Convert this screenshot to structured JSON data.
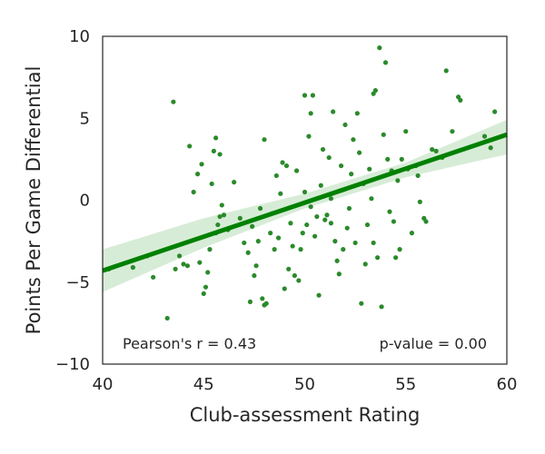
{
  "chart_data": {
    "type": "scatter",
    "title": "",
    "xlabel": "Club-assessment Rating",
    "ylabel": "Points Per Game Differential",
    "xlim": [
      40,
      60
    ],
    "ylim": [
      -10,
      10
    ],
    "xticks": [
      40,
      45,
      50,
      55,
      60
    ],
    "xtick_labels": [
      "40",
      "45",
      "50",
      "55",
      "60"
    ],
    "yticks": [
      -10,
      -5,
      0,
      5,
      10
    ],
    "ytick_labels": [
      "−10",
      "−5",
      "0",
      "5",
      "10"
    ],
    "grid": false,
    "point_color": "#2a8a2a",
    "line_color": "#008000",
    "band_color": "#c9e6c9",
    "regression": {
      "slope": 0.415,
      "intercept": -20.9,
      "x_range": [
        40,
        60
      ]
    },
    "confidence_band": {
      "x": [
        40,
        45,
        50,
        55,
        60
      ],
      "lower": [
        -5.6,
        -2.9,
        -0.5,
        1.4,
        2.8
      ],
      "upper": [
        -3.0,
        -1.1,
        0.4,
        2.3,
        4.9
      ]
    },
    "annotations": {
      "pearson": "Pearson's r = 0.43",
      "pvalue": "p-value = 0.00"
    },
    "points": [
      [
        40.3,
        -4.2
      ],
      [
        41.5,
        -4.1
      ],
      [
        42.2,
        -3.4
      ],
      [
        42.5,
        -4.7
      ],
      [
        43.2,
        -7.2
      ],
      [
        43.5,
        6.0
      ],
      [
        43.6,
        -4.2
      ],
      [
        43.8,
        -3.4
      ],
      [
        44.0,
        -3.9
      ],
      [
        44.2,
        -4.0
      ],
      [
        44.3,
        3.3
      ],
      [
        44.5,
        0.5
      ],
      [
        44.7,
        1.6
      ],
      [
        44.8,
        -3.8
      ],
      [
        44.9,
        2.2
      ],
      [
        45.0,
        -5.7
      ],
      [
        45.1,
        -5.3
      ],
      [
        45.2,
        -4.4
      ],
      [
        45.3,
        -3.0
      ],
      [
        45.4,
        1.0
      ],
      [
        45.5,
        3.0
      ],
      [
        45.6,
        3.8
      ],
      [
        45.6,
        -2.0
      ],
      [
        45.7,
        -1.5
      ],
      [
        45.8,
        -1.0
      ],
      [
        45.8,
        2.8
      ],
      [
        45.9,
        -0.3
      ],
      [
        46.0,
        -0.9
      ],
      [
        46.2,
        -1.8
      ],
      [
        46.5,
        1.1
      ],
      [
        46.8,
        -1.1
      ],
      [
        47.0,
        -2.6
      ],
      [
        47.2,
        -3.2
      ],
      [
        47.3,
        -6.2
      ],
      [
        47.4,
        -1.6
      ],
      [
        47.5,
        -4.6
      ],
      [
        47.6,
        -4.0
      ],
      [
        47.7,
        -2.5
      ],
      [
        47.8,
        -0.5
      ],
      [
        47.9,
        -6.0
      ],
      [
        48.0,
        -6.4
      ],
      [
        48.1,
        -6.3
      ],
      [
        48.0,
        3.7
      ],
      [
        48.3,
        -2.0
      ],
      [
        48.4,
        -0.8
      ],
      [
        48.5,
        -3.0
      ],
      [
        48.6,
        1.5
      ],
      [
        48.7,
        -2.3
      ],
      [
        48.8,
        0.4
      ],
      [
        48.9,
        2.3
      ],
      [
        49.0,
        -5.4
      ],
      [
        49.1,
        2.1
      ],
      [
        49.2,
        -4.2
      ],
      [
        49.3,
        -1.4
      ],
      [
        49.4,
        -2.8
      ],
      [
        49.5,
        -4.6
      ],
      [
        49.6,
        1.8
      ],
      [
        49.7,
        -4.9
      ],
      [
        49.8,
        -3.0
      ],
      [
        49.9,
        -2.0
      ],
      [
        50.0,
        6.4
      ],
      [
        50.0,
        0.5
      ],
      [
        50.1,
        -1.5
      ],
      [
        50.2,
        3.9
      ],
      [
        50.3,
        5.3
      ],
      [
        50.3,
        -0.4
      ],
      [
        50.4,
        6.4
      ],
      [
        50.5,
        -2.2
      ],
      [
        50.6,
        -1.0
      ],
      [
        50.7,
        -5.8
      ],
      [
        50.8,
        0.9
      ],
      [
        50.9,
        3.1
      ],
      [
        51.0,
        -1.2
      ],
      [
        51.1,
        -0.9
      ],
      [
        51.2,
        2.6
      ],
      [
        51.3,
        -1.4
      ],
      [
        51.3,
        0.1
      ],
      [
        51.4,
        5.4
      ],
      [
        51.5,
        -2.5
      ],
      [
        51.6,
        -3.7
      ],
      [
        51.7,
        -4.5
      ],
      [
        51.8,
        2.1
      ],
      [
        51.9,
        -3.0
      ],
      [
        52.0,
        4.6
      ],
      [
        52.1,
        -1.7
      ],
      [
        52.2,
        -0.5
      ],
      [
        52.3,
        1.6
      ],
      [
        52.4,
        3.7
      ],
      [
        52.5,
        -2.6
      ],
      [
        52.6,
        5.3
      ],
      [
        52.7,
        2.9
      ],
      [
        52.8,
        -6.3
      ],
      [
        52.9,
        1.0
      ],
      [
        53.0,
        -3.9
      ],
      [
        53.1,
        -1.5
      ],
      [
        53.2,
        1.9
      ],
      [
        53.3,
        0.1
      ],
      [
        53.4,
        -2.6
      ],
      [
        53.5,
        6.7
      ],
      [
        53.6,
        -3.5
      ],
      [
        53.7,
        9.3
      ],
      [
        53.8,
        -6.5
      ],
      [
        53.9,
        4.0
      ],
      [
        54.0,
        8.4
      ],
      [
        54.1,
        2.5
      ],
      [
        54.2,
        -0.7
      ],
      [
        54.3,
        1.8
      ],
      [
        54.4,
        -1.3
      ],
      [
        54.5,
        -3.5
      ],
      [
        54.6,
        1.2
      ],
      [
        54.7,
        -3.0
      ],
      [
        54.8,
        2.5
      ],
      [
        55.0,
        4.2
      ],
      [
        55.1,
        1.9
      ],
      [
        55.3,
        -2.0
      ],
      [
        55.5,
        2.1
      ],
      [
        55.7,
        -0.1
      ],
      [
        55.9,
        -1.1
      ],
      [
        56.0,
        -1.3
      ],
      [
        56.3,
        3.1
      ],
      [
        56.8,
        2.6
      ],
      [
        57.0,
        7.9
      ],
      [
        57.3,
        4.2
      ],
      [
        57.6,
        6.3
      ],
      [
        57.7,
        6.1
      ],
      [
        58.9,
        3.9
      ],
      [
        59.2,
        3.2
      ],
      [
        59.4,
        5.4
      ],
      [
        56.5,
        3.0
      ],
      [
        55.6,
        1.5
      ],
      [
        53.4,
        6.5
      ]
    ]
  }
}
